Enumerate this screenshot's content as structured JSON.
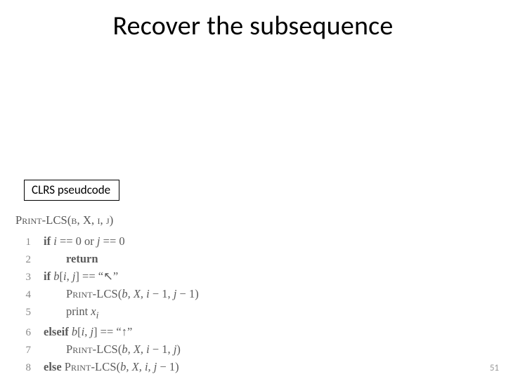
{
  "title": "Recover the subsequence",
  "label": "CLRS pseudcode",
  "page_number": "51",
  "code": {
    "header_name": "Print-LCS",
    "header_args": "(b, X, i, j)",
    "lines": [
      {
        "n": "1",
        "indent": 0,
        "html": "<span class='kw'>if</span> <span class='it'>i</span> == 0 or <span class='it'>j</span> == 0"
      },
      {
        "n": "2",
        "indent": 1,
        "html": "<span class='kw'>return</span>"
      },
      {
        "n": "3",
        "indent": 0,
        "html": "<span class='kw'>if</span> <span class='it'>b</span>[<span class='it'>i</span>, <span class='it'>j</span>] == &ldquo;<span class='arrow-ul'>↖</span>&rdquo;"
      },
      {
        "n": "4",
        "indent": 1,
        "html": "<span class='sc'>Print-LCS</span>(<span class='it'>b, X, i</span> &minus; 1, <span class='it'>j</span> &minus; 1)"
      },
      {
        "n": "5",
        "indent": 1,
        "html": "print <span class='it'>x<sub>i</sub></span>"
      },
      {
        "n": "6",
        "indent": 0,
        "html": "<span class='kw'>elseif</span> <span class='it'>b</span>[<span class='it'>i</span>, <span class='it'>j</span>] == &ldquo;↑&rdquo;"
      },
      {
        "n": "7",
        "indent": 1,
        "html": "<span class='sc'>Print-LCS</span>(<span class='it'>b, X, i</span> &minus; 1, <span class='it'>j</span>)"
      },
      {
        "n": "8",
        "indent": 0,
        "html": "<span class='kw'>else</span> <span class='sc'>Print-LCS</span>(<span class='it'>b, X, i, j</span> &minus; 1)"
      }
    ]
  },
  "style": {
    "title_fontsize": 38,
    "label_fontsize": 17,
    "code_fontsize": 16.5,
    "code_lineheight": 24,
    "text_color": "#000000",
    "code_color": "#5a5a5a",
    "ln_color": "#888888",
    "page_num_color": "#999999",
    "background": "#ffffff",
    "border_color": "#000000"
  }
}
